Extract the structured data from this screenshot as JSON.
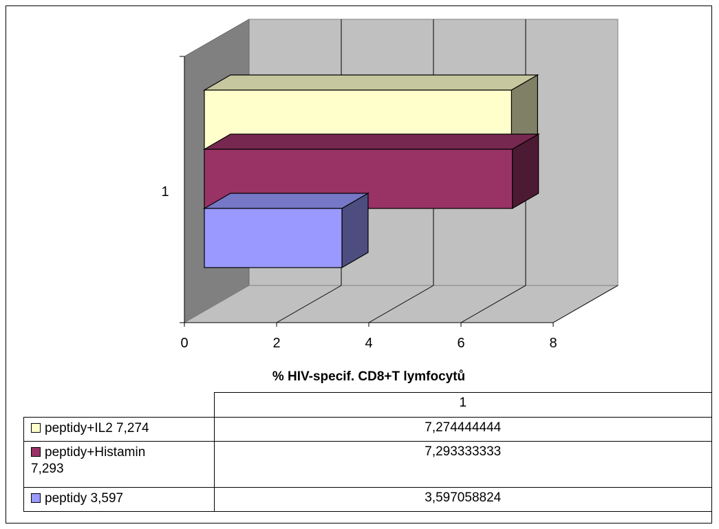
{
  "chart_data": {
    "type": "bar",
    "orientation": "horizontal",
    "style": "3d",
    "categories": [
      "1"
    ],
    "xlabel": "% HIV-specif. CD8+T lymfocytů",
    "ylabel": "",
    "xlim": [
      0,
      8
    ],
    "xticks": [
      "0",
      "2",
      "4",
      "6",
      "8"
    ],
    "grid": true,
    "series": [
      {
        "name": "peptidy+IL2 7,274",
        "values": [
          7.274444444
        ],
        "value_label": "7,274444444",
        "color": "#ffffcc"
      },
      {
        "name": "peptidy+Histamin 7,293",
        "values": [
          7.293333333
        ],
        "value_label": "7,293333333",
        "color": "#993366"
      },
      {
        "name": "peptidy 3,597",
        "values": [
          3.597058824
        ],
        "value_label": "3,597058824",
        "color": "#9999ff"
      }
    ],
    "table": {
      "header": "1",
      "rows": [
        {
          "legend_line1": "peptidy+IL2 7,274",
          "legend_line2": "",
          "value": "7,274444444"
        },
        {
          "legend_line1": "peptidy+Histamin",
          "legend_line2": "7,293",
          "value": "7,293333333"
        },
        {
          "legend_line1": "peptidy 3,597",
          "legend_line2": "",
          "value": "3,597058824"
        }
      ]
    }
  }
}
